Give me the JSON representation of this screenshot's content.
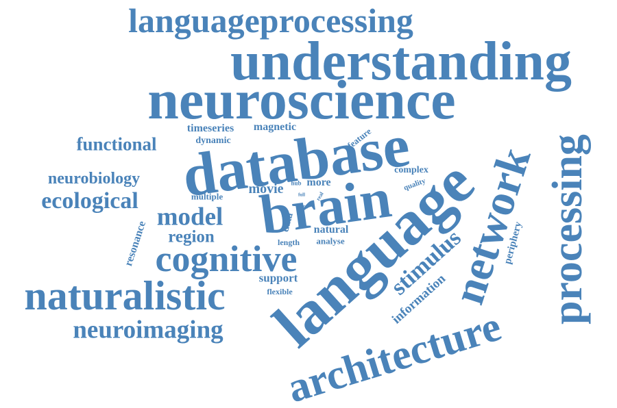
{
  "color": "#4a83b9",
  "words": [
    "languageprocessing",
    "understanding",
    "neuroscience",
    "database",
    "brain",
    "language",
    "network",
    "processing",
    "architecture",
    "naturalistic",
    "cognitive",
    "neuroimaging",
    "ecological",
    "functional",
    "neurobiology",
    "model",
    "region",
    "stimulus",
    "information",
    "resonance",
    "timeseries",
    "magnetic",
    "dynamic",
    "feature",
    "complex",
    "movie",
    "more",
    "hub",
    "multiple",
    "full",
    "real",
    "quality",
    "core",
    "data",
    "natural",
    "length",
    "analyse",
    "support",
    "flexible",
    "periphery"
  ]
}
